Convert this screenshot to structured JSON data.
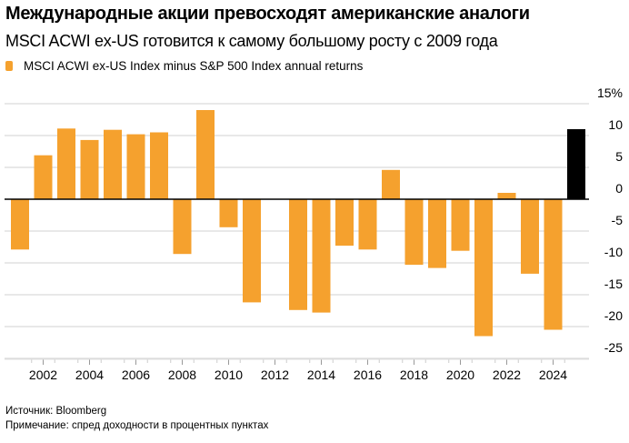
{
  "chart_data": {
    "type": "bar",
    "title": "Международные акции превосходят американские аналоги",
    "subtitle": "MSCI ACWI ex-US готовится к самому большому росту с 2009 года",
    "legend": [
      {
        "name": "MSCI ACWI ex-US Index minus S&P 500 Index annual returns",
        "color": "#F5A12E"
      }
    ],
    "categories": [
      "2001",
      "2002",
      "2003",
      "2004",
      "2005",
      "2006",
      "2007",
      "2008",
      "2009",
      "2010",
      "2011",
      "2012",
      "2013",
      "2014",
      "2015",
      "2016",
      "2017",
      "2018",
      "2019",
      "2020",
      "2021",
      "2022",
      "2023",
      "2024",
      "2025"
    ],
    "values": [
      -7.9,
      6.9,
      11.1,
      9.3,
      10.9,
      10.2,
      10.5,
      -8.6,
      14.0,
      -4.4,
      -16.2,
      0,
      -17.4,
      -17.8,
      -7.3,
      -7.9,
      4.6,
      -10.3,
      -10.8,
      -8.1,
      -21.5,
      1.0,
      -11.7,
      -20.5,
      11.0
    ],
    "highlight": {
      "category": "2025",
      "color": "#000000"
    },
    "bar_color": "#F5A12E",
    "ylim": [
      -25,
      15
    ],
    "yticks": [
      15,
      10,
      5,
      0,
      -5,
      -10,
      -15,
      -20,
      -25
    ],
    "ytick_labels": [
      "15%",
      "10",
      "5",
      "0",
      "-5",
      "-10",
      "-15",
      "-20",
      "-25"
    ],
    "xtick_labels": [
      "2002",
      "2004",
      "2006",
      "2008",
      "2010",
      "2012",
      "2014",
      "2016",
      "2018",
      "2020",
      "2022",
      "2024"
    ],
    "grid": true,
    "yaxis_position": "right",
    "legend_position": "top-left",
    "xlabel": "",
    "ylabel": ""
  },
  "footer": {
    "source": "Источник: Bloomberg",
    "note": "Примечание: спред доходности в процентных пунктах"
  }
}
